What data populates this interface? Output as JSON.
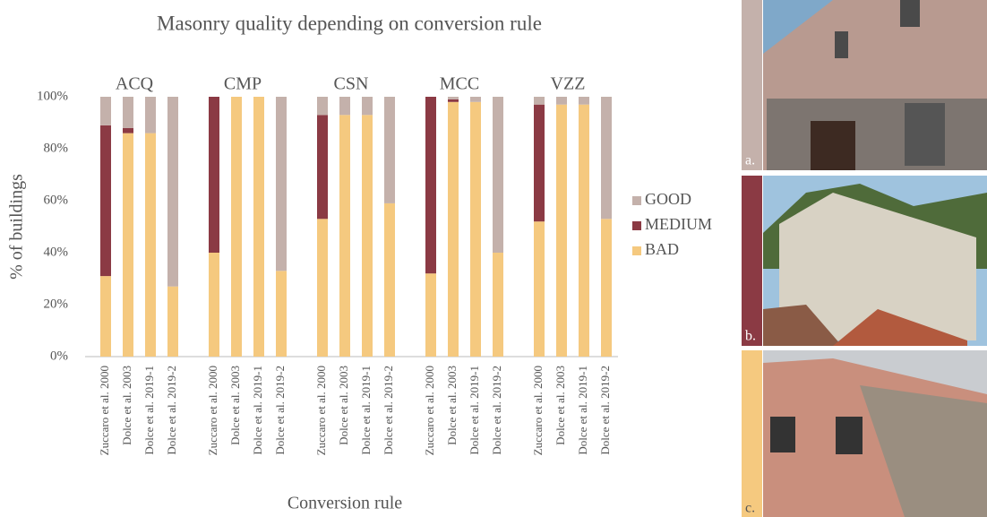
{
  "chart_data": {
    "type": "stacked_bar",
    "title": "Masonry quality depending on conversion rule",
    "x_label": "Conversion rule",
    "y_label": "% of buildings",
    "groups": [
      "ACQ",
      "CMP",
      "CSN",
      "MCC",
      "VZZ"
    ],
    "categories": [
      "Zuccaro et al. 2000",
      "Dolce et al. 2003",
      "Dolce et al. 2019-1",
      "Dolce et al. 2019-2",
      "Zuccaro et al. 2000",
      "Dolce et al. 2003",
      "Dolce et al. 2019-1",
      "Dolce et al. 2019-2",
      "Zuccaro et al. 2000",
      "Dolce et al. 2003",
      "Dolce et al. 2019-1",
      "Dolce et al. 2019-2",
      "Zuccaro et al. 2000",
      "Dolce et al. 2003",
      "Dolce et al. 2019-1",
      "Dolce et al. 2019-2",
      "Zuccaro et al. 2000",
      "Dolce et al. 2003",
      "Dolce et al. 2019-1",
      "Dolce et al. 2019-2"
    ],
    "series": [
      {
        "name": "BAD",
        "color": "#f5c97f",
        "values": [
          31,
          86,
          86,
          27,
          40,
          100,
          100,
          33,
          53,
          93,
          93,
          59,
          32,
          98,
          98,
          40,
          52,
          97,
          97,
          53
        ]
      },
      {
        "name": "MEDIUM",
        "color": "#8b3a44",
        "values": [
          58,
          2,
          0,
          0,
          60,
          0,
          0,
          0,
          40,
          0,
          0,
          0,
          68,
          1,
          0,
          0,
          45,
          0,
          0,
          0
        ]
      },
      {
        "name": "GOOD",
        "color": "#c4b1ab",
        "values": [
          11,
          12,
          14,
          73,
          0,
          0,
          0,
          67,
          7,
          7,
          7,
          41,
          0,
          1,
          2,
          60,
          3,
          3,
          3,
          47
        ]
      }
    ],
    "ylim": [
      0,
      100
    ],
    "yticks": [
      {
        "value": 0,
        "label": "0%"
      },
      {
        "value": 20,
        "label": "20%"
      },
      {
        "value": 40,
        "label": "40%"
      },
      {
        "value": 60,
        "label": "60%"
      },
      {
        "value": 80,
        "label": "80%"
      },
      {
        "value": 100,
        "label": "100%"
      }
    ],
    "grid": false,
    "legend": "right",
    "panel_labels": [
      "a.",
      "b.",
      "c."
    ]
  }
}
